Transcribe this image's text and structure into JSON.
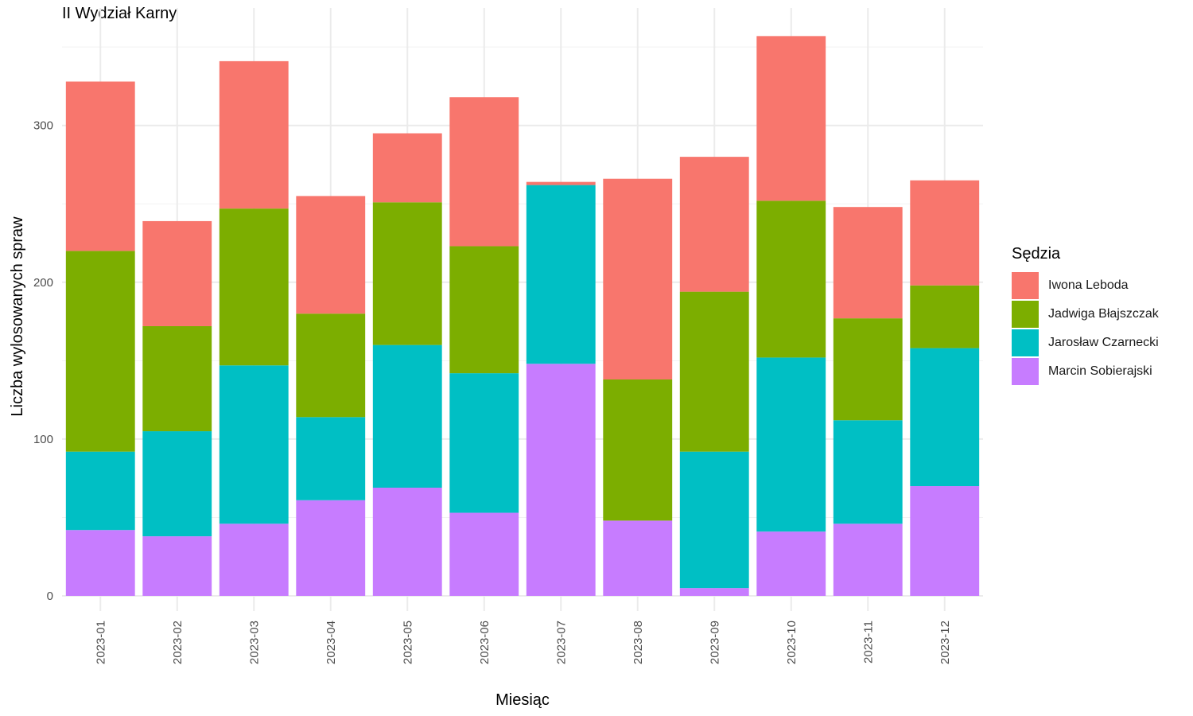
{
  "chart_data": {
    "type": "bar",
    "stacked": true,
    "title": "II Wydział Karny",
    "xlabel": "Miesiąc",
    "ylabel": "Liczba wylosowanych spraw",
    "ylim": [
      0,
      370
    ],
    "yticks": [
      0,
      100,
      200,
      300
    ],
    "grid": true,
    "legend_title": "Sędzia",
    "legend_position": "right",
    "categories": [
      "2023-01",
      "2023-02",
      "2023-03",
      "2023-04",
      "2023-05",
      "2023-06",
      "2023-07",
      "2023-08",
      "2023-09",
      "2023-10",
      "2023-11",
      "2023-12"
    ],
    "series": [
      {
        "name": "Marcin Sobierajski",
        "color": "#C77CFF",
        "values": [
          42,
          38,
          46,
          61,
          69,
          53,
          148,
          48,
          5,
          41,
          46,
          70
        ]
      },
      {
        "name": "Jarosław Czarnecki",
        "color": "#00BFC4",
        "values": [
          50,
          67,
          101,
          53,
          91,
          89,
          114,
          0,
          87,
          111,
          66,
          88
        ]
      },
      {
        "name": "Jadwiga Błajszczak",
        "color": "#7CAE00",
        "values": [
          128,
          67,
          100,
          66,
          91,
          81,
          0,
          90,
          102,
          100,
          65,
          40
        ]
      },
      {
        "name": "Iwona Leboda",
        "color": "#F8766D",
        "values": [
          108,
          67,
          94,
          75,
          44,
          95,
          2,
          128,
          86,
          105,
          71,
          67
        ]
      }
    ],
    "legend_order": [
      "Iwona Leboda",
      "Jadwiga Błajszczak",
      "Jarosław Czarnecki",
      "Marcin Sobierajski"
    ]
  }
}
